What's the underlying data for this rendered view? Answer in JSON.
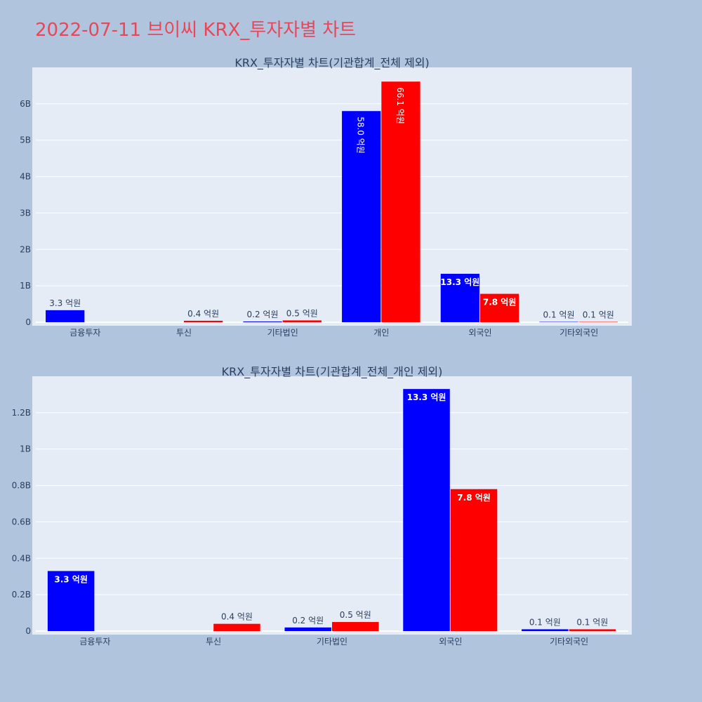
{
  "page": {
    "title": "2022-07-11 브이씨 KRX_투자자별 차트"
  },
  "colors": {
    "series_a": "#0000ff",
    "series_b": "#ff0000",
    "plot_bg": "#e5ecf6",
    "page_bg": "#b0c4de",
    "title": "#e8475a"
  },
  "chart_data": [
    {
      "type": "bar",
      "title": "KRX_투자자별 차트(기관합계_전체 제외)",
      "categories": [
        "금융투자",
        "투신",
        "기타법인",
        "개인",
        "외국인",
        "기타외국인"
      ],
      "series": [
        {
          "values": [
            330000000,
            0,
            20000000,
            5800000000,
            1330000000,
            10000000
          ],
          "labels": [
            "3.3 억원",
            "",
            "0.2 억원",
            "58.0 억원",
            "13.3 억원",
            "0.1 억원"
          ]
        },
        {
          "values": [
            0,
            40000000,
            50000000,
            6610000000,
            780000000,
            10000000
          ],
          "labels": [
            "",
            "0.4 억원",
            "0.5 억원",
            "66.1 억원",
            "7.8 억원",
            "0.1 억원"
          ]
        }
      ],
      "ylim": [
        0,
        7000000000
      ],
      "yticks": [
        0,
        1000000000,
        2000000000,
        3000000000,
        4000000000,
        5000000000,
        6000000000
      ],
      "ytick_labels": [
        "0",
        "1B",
        "2B",
        "3B",
        "4B",
        "5B",
        "6B"
      ],
      "grid": true
    },
    {
      "type": "bar",
      "title": "KRX_투자자별 차트(기관합계_전체_개인 제외)",
      "categories": [
        "금융투자",
        "투신",
        "기타법인",
        "외국인",
        "기타외국인"
      ],
      "series": [
        {
          "values": [
            330000000,
            0,
            20000000,
            1330000000,
            10000000
          ],
          "labels": [
            "3.3 억원",
            "",
            "0.2 억원",
            "13.3 억원",
            "0.1 억원"
          ]
        },
        {
          "values": [
            0,
            40000000,
            50000000,
            780000000,
            10000000
          ],
          "labels": [
            "",
            "0.4 억원",
            "0.5 억원",
            "7.8 억원",
            "0.1 억원"
          ]
        }
      ],
      "ylim": [
        0,
        1400000000
      ],
      "yticks": [
        0,
        200000000,
        400000000,
        600000000,
        800000000,
        1000000000,
        1200000000
      ],
      "ytick_labels": [
        "0",
        "0.2B",
        "0.4B",
        "0.6B",
        "0.8B",
        "1B",
        "1.2B"
      ],
      "grid": true
    }
  ]
}
